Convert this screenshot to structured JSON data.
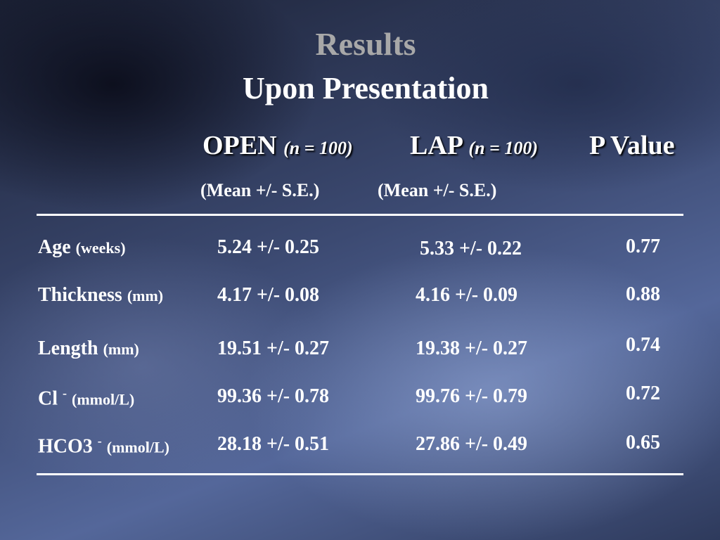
{
  "header": {
    "title": "Results",
    "subtitle": "Upon Presentation"
  },
  "table": {
    "columns": [
      {
        "name": "OPEN",
        "n": "(n = 100)",
        "stat": "(Mean +/- S.E.)"
      },
      {
        "name": "LAP",
        "n": "(n = 100)",
        "stat": "(Mean +/- S.E.)"
      },
      {
        "name": "P Value"
      }
    ],
    "rows": [
      {
        "label": "Age",
        "unit": "(weeks)",
        "open": "5.24 +/- 0.25",
        "lap": "5.33 +/- 0.22",
        "p": "0.77"
      },
      {
        "label": "Thickness",
        "unit": "(mm)",
        "open": "4.17 +/- 0.08",
        "lap": "4.16 +/- 0.09",
        "p": "0.88"
      },
      {
        "label": "Length",
        "unit": "(mm)",
        "open": "19.51 +/- 0.27",
        "lap": "19.38 +/- 0.27",
        "p": "0.74"
      },
      {
        "label": "Cl",
        "sup": "-",
        "unit": "(mmol/L)",
        "open": "99.36 +/- 0.78",
        "lap": "99.76 +/- 0.79",
        "p": "0.72"
      },
      {
        "label": "HCO3",
        "sup": "-",
        "unit": "(mmol/L)",
        "open": "28.18 +/- 0.51",
        "lap": "27.86 +/- 0.49",
        "p": "0.65"
      }
    ]
  }
}
